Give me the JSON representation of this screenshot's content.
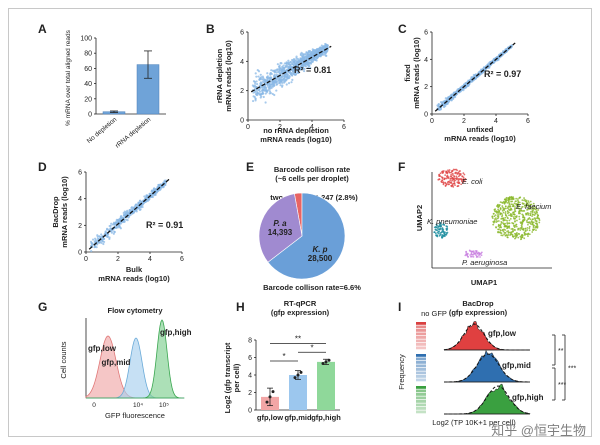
{
  "panels": {
    "A": {
      "letter": "A"
    },
    "B": {
      "letter": "B"
    },
    "C": {
      "letter": "C"
    },
    "D": {
      "letter": "D"
    },
    "E": {
      "letter": "E"
    },
    "F": {
      "letter": "F"
    },
    "G": {
      "letter": "G"
    },
    "H": {
      "letter": "H"
    },
    "I": {
      "letter": "I"
    }
  },
  "watermark": "知乎 @恒宇生物",
  "colors": {
    "bar_blue": "#6fa3d8",
    "scatter_blue": "#8ab8e6",
    "pie_blue": "#6a9fd8",
    "pie_purple": "#a08ad0",
    "pie_red": "#e86464"
  },
  "chart_data": [
    {
      "id": "A",
      "type": "bar",
      "categories": [
        "No depletion",
        "rRNA depletion"
      ],
      "values": [
        3,
        65
      ],
      "errors": [
        1,
        18
      ],
      "ylabel": "% mRNA over total aligned reads",
      "ylim": [
        0,
        100
      ],
      "yticks": [
        0,
        20,
        40,
        60,
        80,
        100
      ]
    },
    {
      "id": "B",
      "type": "scatter",
      "xlabel": "no rRNA depletion\nmRNA reads (log10)",
      "ylabel": "rRNA depletion\nmRNA reads (log10)",
      "xlim": [
        0,
        6
      ],
      "ylim": [
        0,
        6
      ],
      "xticks": [
        0,
        2,
        4,
        6
      ],
      "yticks": [
        0,
        2,
        4,
        6
      ],
      "annotation": "R² = 0.81",
      "fit": {
        "slope": 0.62,
        "intercept": 1.8
      }
    },
    {
      "id": "C",
      "type": "scatter",
      "xlabel": "unfixed\nmRNA reads (log10)",
      "ylabel": "fixed\nmRNA reads (log10)",
      "xlim": [
        0,
        6
      ],
      "ylim": [
        0,
        6
      ],
      "xticks": [
        0,
        2,
        4,
        6
      ],
      "yticks": [
        0,
        2,
        4,
        6
      ],
      "annotation": "R² = 0.97",
      "fit": {
        "slope": 1.0,
        "intercept": 0.0
      }
    },
    {
      "id": "D",
      "type": "scatter",
      "xlabel": "Bulk\nmRNA reads (log10)",
      "ylabel": "BacDrop\nmRNA reads (log10)",
      "xlim": [
        0,
        6
      ],
      "ylim": [
        0,
        6
      ],
      "xticks": [
        0,
        2,
        4,
        6
      ],
      "yticks": [
        0,
        2,
        4,
        6
      ],
      "annotation": "R² = 0.91",
      "fit": {
        "slope": 1.05,
        "intercept": 0.0
      }
    },
    {
      "id": "E",
      "type": "pie",
      "title": "Barcode collison rate\n(~6 cells per droplet)",
      "slices": [
        {
          "label": "K. p",
          "value": 28500,
          "color": "#6a9fd8"
        },
        {
          "label": "P. a",
          "value": 14393,
          "color": "#a08ad0"
        },
        {
          "label": "two species",
          "value": 1247,
          "color": "#e86464"
        }
      ],
      "top_annotation": "two species 1,247 (2.8%)",
      "bottom_annotation": "Barcode collison rate=6.6%"
    },
    {
      "id": "F",
      "type": "scatter",
      "xlabel": "UMAP1",
      "ylabel": "UMAP2",
      "clusters": [
        "E. coli",
        "E. faecium",
        "K. pneumoniae",
        "P. aeruginosa"
      ]
    },
    {
      "id": "G",
      "type": "area",
      "title": "Flow cytometry",
      "xlabel": "GFP fluorescence",
      "ylabel": "Cell counts",
      "xtick_labels": [
        "0",
        "10⁴",
        "10⁵"
      ],
      "series": [
        {
          "name": "gfp,low",
          "color": "#f0a8a8"
        },
        {
          "name": "gfp,mid",
          "color": "#a8d0ee"
        },
        {
          "name": "gfp,high",
          "color": "#80d090"
        }
      ]
    },
    {
      "id": "H",
      "type": "bar",
      "title": "RT-qPCR\n(gfp expression)",
      "categories": [
        "gfp,low",
        "gfp,mid",
        "gfp,high"
      ],
      "values": [
        1.5,
        4.0,
        5.5
      ],
      "errors": [
        1.0,
        0.5,
        0.3
      ],
      "ylabel": "Log2 (gfp transcript\nper cell)",
      "ylim": [
        0,
        8
      ],
      "yticks": [
        0,
        2,
        4,
        6,
        8
      ],
      "significance": [
        "**",
        "*",
        "*"
      ]
    },
    {
      "id": "I",
      "type": "area",
      "title": "BacDrop\n(gfp expression)",
      "left_label": "no GFP",
      "ylabel": "Frequency",
      "xlabel": "Log2 (TP 10K+1 per cell)",
      "series": [
        {
          "name": "gfp,low",
          "color": "#e04040"
        },
        {
          "name": "gfp,mid",
          "color": "#2f6fb0"
        },
        {
          "name": "gfp,high",
          "color": "#3aa040"
        }
      ],
      "significance": [
        "**",
        "***",
        "***"
      ]
    }
  ]
}
